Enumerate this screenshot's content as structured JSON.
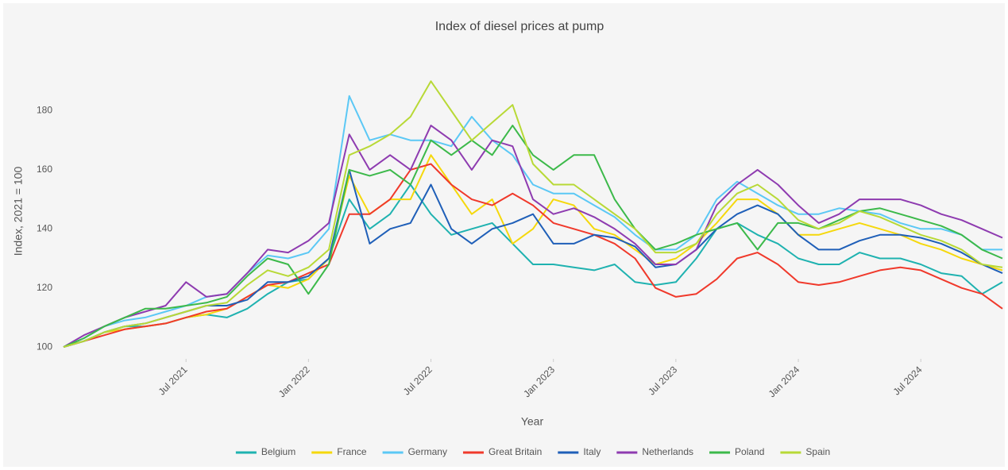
{
  "chart_data": {
    "type": "line",
    "title": "Index of diesel prices at pump",
    "x_label": "Year",
    "y_label": "Index, 2021 = 100",
    "x": [
      "2021-01",
      "2021-02",
      "2021-03",
      "2021-04",
      "2021-05",
      "2021-06",
      "2021-07",
      "2021-08",
      "2021-09",
      "2021-10",
      "2021-11",
      "2021-12",
      "2022-01",
      "2022-02",
      "2022-03",
      "2022-04",
      "2022-05",
      "2022-06",
      "2022-07",
      "2022-08",
      "2022-09",
      "2022-10",
      "2022-11",
      "2022-12",
      "2023-01",
      "2023-02",
      "2023-03",
      "2023-04",
      "2023-05",
      "2023-06",
      "2023-07",
      "2023-08",
      "2023-09",
      "2023-10",
      "2023-11",
      "2023-12",
      "2024-01",
      "2024-02",
      "2024-03",
      "2024-04",
      "2024-05",
      "2024-06",
      "2024-07",
      "2024-08",
      "2024-09",
      "2024-10",
      "2024-11"
    ],
    "xlim": [
      "2021-01",
      "2024-11"
    ],
    "xticks": [
      {
        "value": "2021-07",
        "label": "Jul 2021"
      },
      {
        "value": "2022-01",
        "label": "Jan 2022"
      },
      {
        "value": "2022-07",
        "label": "Jul 2022"
      },
      {
        "value": "2023-01",
        "label": "Jan 2023"
      },
      {
        "value": "2023-07",
        "label": "Jul 2023"
      },
      {
        "value": "2024-01",
        "label": "Jan 2024"
      },
      {
        "value": "2024-07",
        "label": "Jul 2024"
      }
    ],
    "ylim": [
      96,
      196
    ],
    "yticks": [
      100,
      120,
      140,
      160,
      180
    ],
    "grid": false,
    "legend": "bottom",
    "series": [
      {
        "name": "Belgium",
        "color": "#1fb2b0",
        "values": [
          100,
          102,
          105,
          107,
          107,
          108,
          110,
          111,
          110,
          113,
          118,
          122,
          123,
          130,
          150,
          140,
          145,
          155,
          145,
          138,
          140,
          142,
          135,
          128,
          128,
          127,
          126,
          128,
          122,
          121,
          122,
          130,
          140,
          142,
          138,
          135,
          130,
          128,
          128,
          132,
          130,
          130,
          128,
          125,
          124,
          118,
          122
        ]
      },
      {
        "name": "France",
        "color": "#f5d80c",
        "values": [
          100,
          102,
          105,
          106,
          107,
          108,
          110,
          111,
          113,
          117,
          121,
          120,
          123,
          130,
          158,
          145,
          150,
          150,
          165,
          155,
          145,
          150,
          135,
          140,
          150,
          148,
          140,
          138,
          133,
          128,
          130,
          135,
          142,
          150,
          150,
          145,
          138,
          138,
          140,
          142,
          140,
          138,
          135,
          133,
          130,
          128,
          126
        ]
      },
      {
        "name": "Germany",
        "color": "#5bc8f5",
        "values": [
          100,
          103,
          107,
          109,
          110,
          112,
          114,
          117,
          118,
          125,
          131,
          130,
          132,
          140,
          185,
          170,
          172,
          170,
          170,
          168,
          178,
          170,
          165,
          155,
          152,
          152,
          148,
          144,
          138,
          133,
          133,
          138,
          150,
          156,
          152,
          148,
          145,
          145,
          147,
          146,
          145,
          142,
          140,
          140,
          138,
          133,
          133
        ]
      },
      {
        "name": "Great Britain",
        "color": "#f0392b",
        "values": [
          100,
          102,
          104,
          106,
          107,
          108,
          110,
          112,
          113,
          117,
          121,
          122,
          125,
          128,
          145,
          145,
          150,
          160,
          162,
          155,
          150,
          148,
          152,
          148,
          142,
          140,
          138,
          135,
          130,
          120,
          117,
          118,
          123,
          130,
          132,
          128,
          122,
          121,
          122,
          124,
          126,
          127,
          126,
          123,
          120,
          118,
          113
        ]
      },
      {
        "name": "Italy",
        "color": "#1f5fb8",
        "values": [
          100,
          102,
          105,
          107,
          108,
          110,
          112,
          114,
          114,
          116,
          122,
          122,
          124,
          130,
          160,
          135,
          140,
          142,
          155,
          140,
          135,
          140,
          142,
          145,
          135,
          135,
          138,
          137,
          134,
          127,
          128,
          133,
          140,
          145,
          148,
          145,
          138,
          133,
          133,
          136,
          138,
          138,
          137,
          135,
          132,
          128,
          125
        ]
      },
      {
        "name": "Netherlands",
        "color": "#8e3bb0",
        "values": [
          100,
          104,
          107,
          110,
          112,
          114,
          122,
          117,
          118,
          125,
          133,
          132,
          136,
          142,
          172,
          160,
          165,
          160,
          175,
          170,
          160,
          170,
          168,
          150,
          145,
          147,
          144,
          140,
          135,
          128,
          128,
          133,
          148,
          155,
          160,
          155,
          148,
          142,
          145,
          150,
          150,
          150,
          148,
          145,
          143,
          140,
          137
        ]
      },
      {
        "name": "Poland",
        "color": "#3cb94a",
        "values": [
          100,
          103,
          107,
          110,
          113,
          113,
          114,
          115,
          117,
          124,
          130,
          128,
          118,
          128,
          160,
          158,
          160,
          155,
          170,
          165,
          170,
          165,
          175,
          165,
          160,
          165,
          165,
          150,
          140,
          133,
          135,
          138,
          140,
          142,
          133,
          142,
          142,
          140,
          143,
          146,
          147,
          145,
          143,
          141,
          138,
          133,
          130
        ]
      },
      {
        "name": "Spain",
        "color": "#b8d936",
        "values": [
          100,
          102,
          105,
          107,
          108,
          110,
          112,
          114,
          115,
          121,
          126,
          124,
          127,
          133,
          165,
          168,
          172,
          178,
          190,
          180,
          170,
          176,
          182,
          162,
          155,
          155,
          150,
          145,
          140,
          132,
          132,
          135,
          145,
          152,
          155,
          150,
          143,
          140,
          142,
          146,
          144,
          141,
          138,
          136,
          133,
          128,
          127
        ]
      }
    ]
  }
}
